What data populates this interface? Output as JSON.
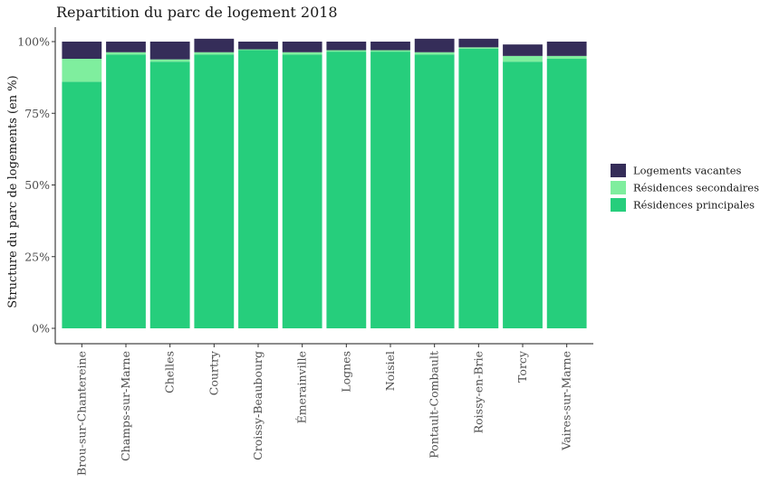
{
  "chart_data": {
    "type": "bar",
    "stacked": true,
    "title": "Repartition du parc de logement 2018",
    "xlabel": "",
    "ylabel": "Structure du parc de logements (en %)",
    "ylim": [
      0,
      1
    ],
    "y_ticks": [
      {
        "value": 0,
        "label": "0%"
      },
      {
        "value": 0.25,
        "label": "25%"
      },
      {
        "value": 0.5,
        "label": "50%"
      },
      {
        "value": 0.75,
        "label": "75%"
      },
      {
        "value": 1,
        "label": "100%"
      }
    ],
    "grid": false,
    "legend_position": "right",
    "categories": [
      "Brou-sur-Chantereine",
      "Champs-sur-Marne",
      "Chelles",
      "Courtry",
      "Croissy-Beaubourg",
      "Émerainville",
      "Lognes",
      "Noisiel",
      "Pontault-Combault",
      "Roissy-en-Brie",
      "Torcy",
      "Vaires-sur-Marne"
    ],
    "series": [
      {
        "name": "Résidences principales",
        "color": "#26CE7C",
        "values": [
          0.86,
          0.955,
          0.93,
          0.955,
          0.97,
          0.955,
          0.965,
          0.965,
          0.955,
          0.975,
          0.93,
          0.94
        ]
      },
      {
        "name": "Résidences secondaires",
        "color": "#7FEE9E",
        "values": [
          0.08,
          0.008,
          0.008,
          0.008,
          0.003,
          0.008,
          0.005,
          0.005,
          0.008,
          0.005,
          0.02,
          0.01
        ]
      },
      {
        "name": "Logements vacantes",
        "color": "#352D59",
        "values": [
          0.06,
          0.037,
          0.062,
          0.047,
          0.027,
          0.037,
          0.03,
          0.03,
          0.047,
          0.03,
          0.04,
          0.05
        ]
      }
    ],
    "legend_order": [
      "Logements vacantes",
      "Résidences secondaires",
      "Résidences principales"
    ]
  }
}
